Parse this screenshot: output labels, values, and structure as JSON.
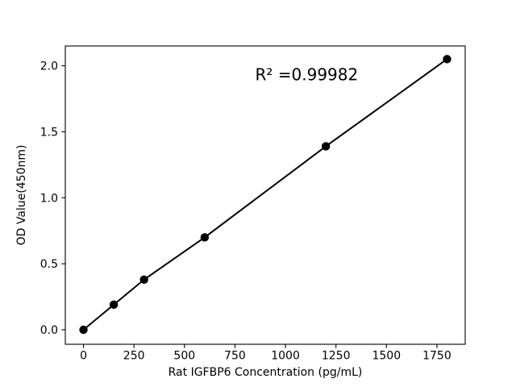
{
  "figure": {
    "background": "#ffffff"
  },
  "chart_data": {
    "type": "scatter",
    "title": "",
    "xlabel": "Rat IGFBP6 Concentration (pg/mL)",
    "ylabel": "OD Value(450nm)",
    "x": [
      0,
      150,
      300,
      600,
      1200,
      1800
    ],
    "y": [
      0.0,
      0.19,
      0.38,
      0.7,
      1.39,
      2.05
    ],
    "line_through_points": true,
    "xlim": [
      -90,
      1890
    ],
    "ylim": [
      -0.11,
      2.15
    ],
    "xtick_labels": [
      "0",
      "250",
      "500",
      "750",
      "1000",
      "1250",
      "1500",
      "1750"
    ],
    "ytick_labels": [
      "0.0",
      "0.5",
      "1.0",
      "1.5",
      "2.0"
    ],
    "grid": false,
    "legend": null,
    "annotation": {
      "text": "R² =0.99982",
      "x_data": 1105,
      "y_data": 1.89
    },
    "line_color": "#000000",
    "marker_color": "#000000",
    "axis_color": "#000000"
  }
}
